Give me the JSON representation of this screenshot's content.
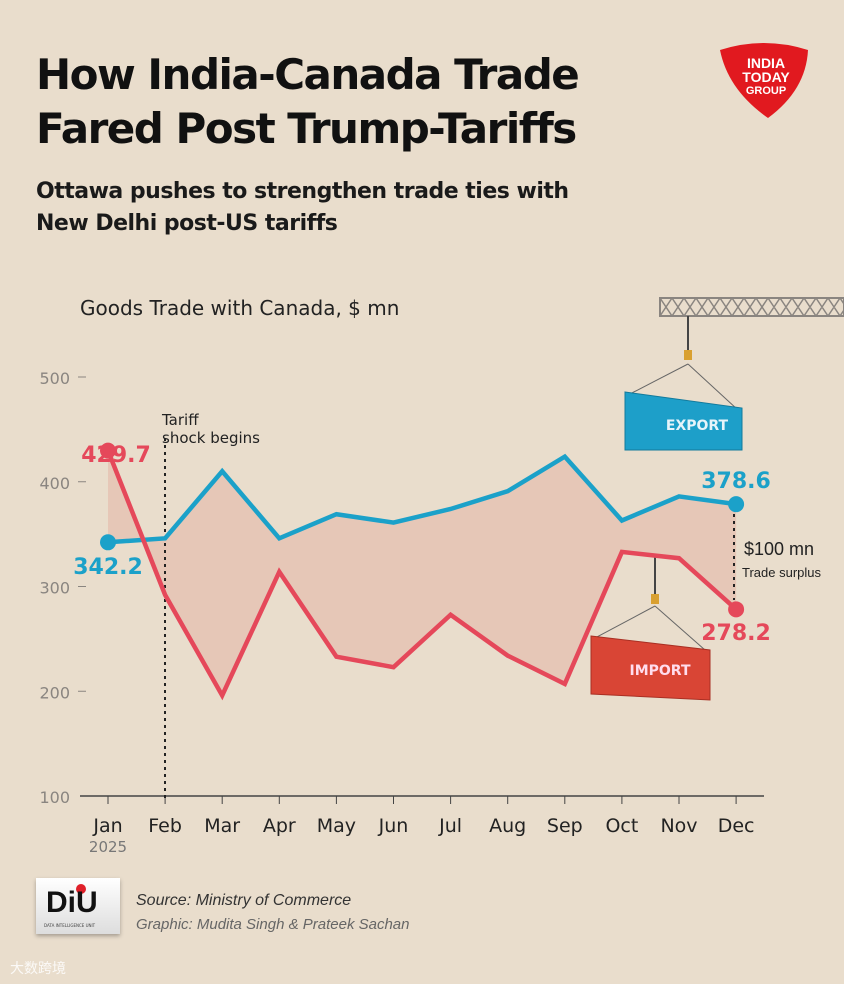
{
  "header": {
    "title_line1": "How India-Canada Trade",
    "title_line2": "Fared Post Trump-Tariffs",
    "subtitle_line1": "Ottawa pushes to strengthen trade ties with",
    "subtitle_line2": "New Delhi post-US tariffs",
    "logo_text": [
      "INDIA",
      "TODAY",
      "GROUP"
    ]
  },
  "chart_data": {
    "type": "line",
    "title": "Goods Trade with Canada, $ mn",
    "categories": [
      "Jan",
      "Feb",
      "Mar",
      "Apr",
      "May",
      "Jun",
      "Jul",
      "Aug",
      "Sep",
      "Oct",
      "Nov",
      "Dec"
    ],
    "year_label": "2025",
    "ylim": [
      100,
      500
    ],
    "yticks": [
      "500",
      "400",
      "300",
      "200",
      "100"
    ],
    "series": [
      {
        "name": "Export",
        "color": "#1ba1c9",
        "values": [
          342.2,
          346,
          410,
          346,
          369,
          361,
          374,
          391,
          424,
          363,
          386,
          378.6
        ]
      },
      {
        "name": "Import",
        "color": "#e5485a",
        "values": [
          429.7,
          292,
          196,
          314,
          233,
          223,
          273,
          234,
          207,
          333,
          327,
          278.2
        ]
      }
    ],
    "annotations": {
      "tariff_line1": "Tariff",
      "tariff_line2": "shock begins",
      "export_start": "342.2",
      "export_end": "378.6",
      "import_start": "429.7",
      "import_end": "278.2",
      "surplus_value": "$100 mn",
      "surplus_label": "Trade surplus",
      "export_container": "EXPORT",
      "import_container": "IMPORT"
    },
    "grid": false
  },
  "footer": {
    "diu_logo": "DiU",
    "diu_sub": "DATA INTELLIGENCE UNIT",
    "source": "Source: Ministry of Commerce",
    "graphic": "Graphic: Mudita Singh & Prateek Sachan",
    "watermark": "大数跨境"
  }
}
